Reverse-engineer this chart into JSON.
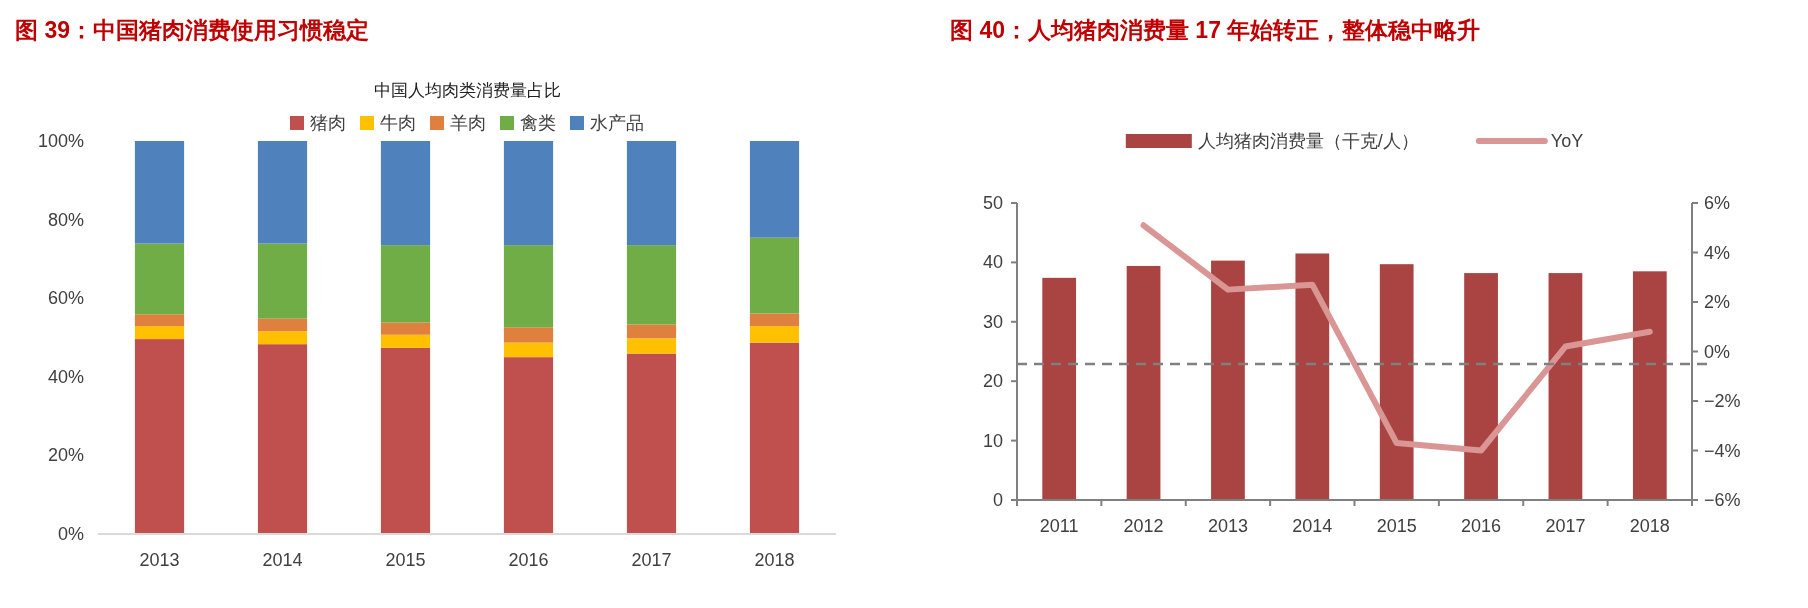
{
  "chart_data": [
    {
      "type": "bar",
      "stacked": true,
      "title": "图 39：中国猪肉消费使用习惯稳定",
      "subtitle": "中国人均肉类消费量占比",
      "categories": [
        "2013",
        "2014",
        "2015",
        "2016",
        "2017",
        "2018"
      ],
      "series": [
        {
          "name": "猪肉",
          "color": "#c0504d",
          "values": [
            49.6,
            48.3,
            47.4,
            45.0,
            45.9,
            48.7
          ]
        },
        {
          "name": "牛肉",
          "color": "#ffc000",
          "values": [
            3.3,
            3.3,
            3.3,
            3.7,
            3.9,
            4.2
          ]
        },
        {
          "name": "羊肉",
          "color": "#e0803e",
          "values": [
            3.0,
            3.2,
            3.1,
            3.9,
            3.5,
            3.2
          ]
        },
        {
          "name": "禽类",
          "color": "#70ad47",
          "values": [
            18.0,
            19.1,
            19.7,
            20.9,
            20.2,
            19.3
          ]
        },
        {
          "name": "水产品",
          "color": "#4f81bd",
          "values": [
            26.1,
            26.1,
            26.5,
            26.5,
            26.5,
            24.6
          ]
        }
      ],
      "ylim": [
        0,
        100
      ],
      "yticks": [
        {
          "value": 0,
          "label": "0%"
        },
        {
          "value": 20,
          "label": "20%"
        },
        {
          "value": 40,
          "label": "40%"
        },
        {
          "value": 60,
          "label": "60%"
        },
        {
          "value": 80,
          "label": "80%"
        },
        {
          "value": 100,
          "label": "100%"
        }
      ],
      "legend": "top",
      "grid": false
    },
    {
      "type": "bar",
      "title": "图 40：人均猪肉消费量 17 年始转正，整体稳中略升",
      "categories": [
        "2011",
        "2012",
        "2013",
        "2014",
        "2015",
        "2016",
        "2017",
        "2018"
      ],
      "series": [
        {
          "name": "人均猪肉消费量（干克/人）",
          "color": "#a94442",
          "values": [
            37.4,
            39.4,
            40.3,
            41.5,
            39.7,
            38.2,
            38.2,
            38.5
          ]
        },
        {
          "name": "YoY",
          "type": "line",
          "axis": "y2",
          "color": "#d99694",
          "values": [
            null,
            5.1,
            2.5,
            2.7,
            -3.7,
            -4.0,
            0.2,
            0.8
          ]
        }
      ],
      "ylim": [
        0,
        50
      ],
      "yticks": [
        0,
        10,
        20,
        30,
        40,
        50
      ],
      "y2lim": [
        -6,
        6
      ],
      "y2ticks": [
        {
          "value": -6,
          "label": "−6%"
        },
        {
          "value": -4,
          "label": "−4%"
        },
        {
          "value": -2,
          "label": "−2%"
        },
        {
          "value": 0,
          "label": "0%"
        },
        {
          "value": 2,
          "label": "2%"
        },
        {
          "value": 4,
          "label": "4%"
        },
        {
          "value": 6,
          "label": "6%"
        }
      ],
      "ref_lines": [
        {
          "axis": "y2",
          "value": -0.5,
          "color": "#808080",
          "line_style": "dashed"
        }
      ],
      "legend": "top",
      "grid": false
    }
  ]
}
